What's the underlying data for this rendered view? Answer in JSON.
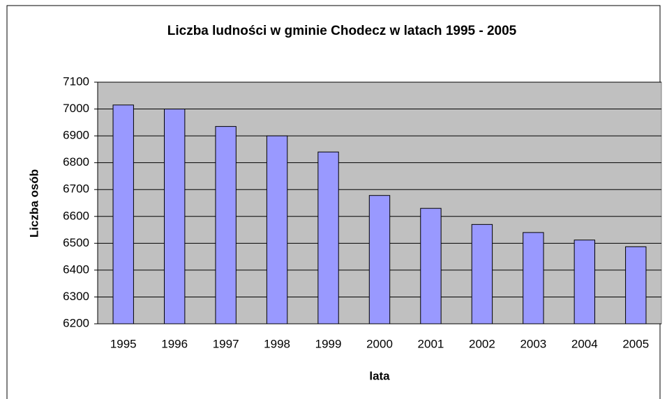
{
  "chart_data": {
    "type": "bar",
    "title": "Liczba ludności w gminie Chodecz w latach 1995 - 2005",
    "x_label": "lata",
    "y_label": "Liczba osób",
    "categories": [
      "1995",
      "1996",
      "1997",
      "1998",
      "1999",
      "2000",
      "2001",
      "2002",
      "2003",
      "2004",
      "2005"
    ],
    "values": [
      7015,
      7000,
      6935,
      6900,
      6840,
      6678,
      6630,
      6570,
      6540,
      6512,
      6487
    ],
    "color": "#9999ff",
    "ylim": [
      6200,
      7100
    ],
    "yticks": [
      6200,
      6300,
      6400,
      6500,
      6600,
      6700,
      6800,
      6900,
      7000,
      7100
    ],
    "grid": true
  }
}
